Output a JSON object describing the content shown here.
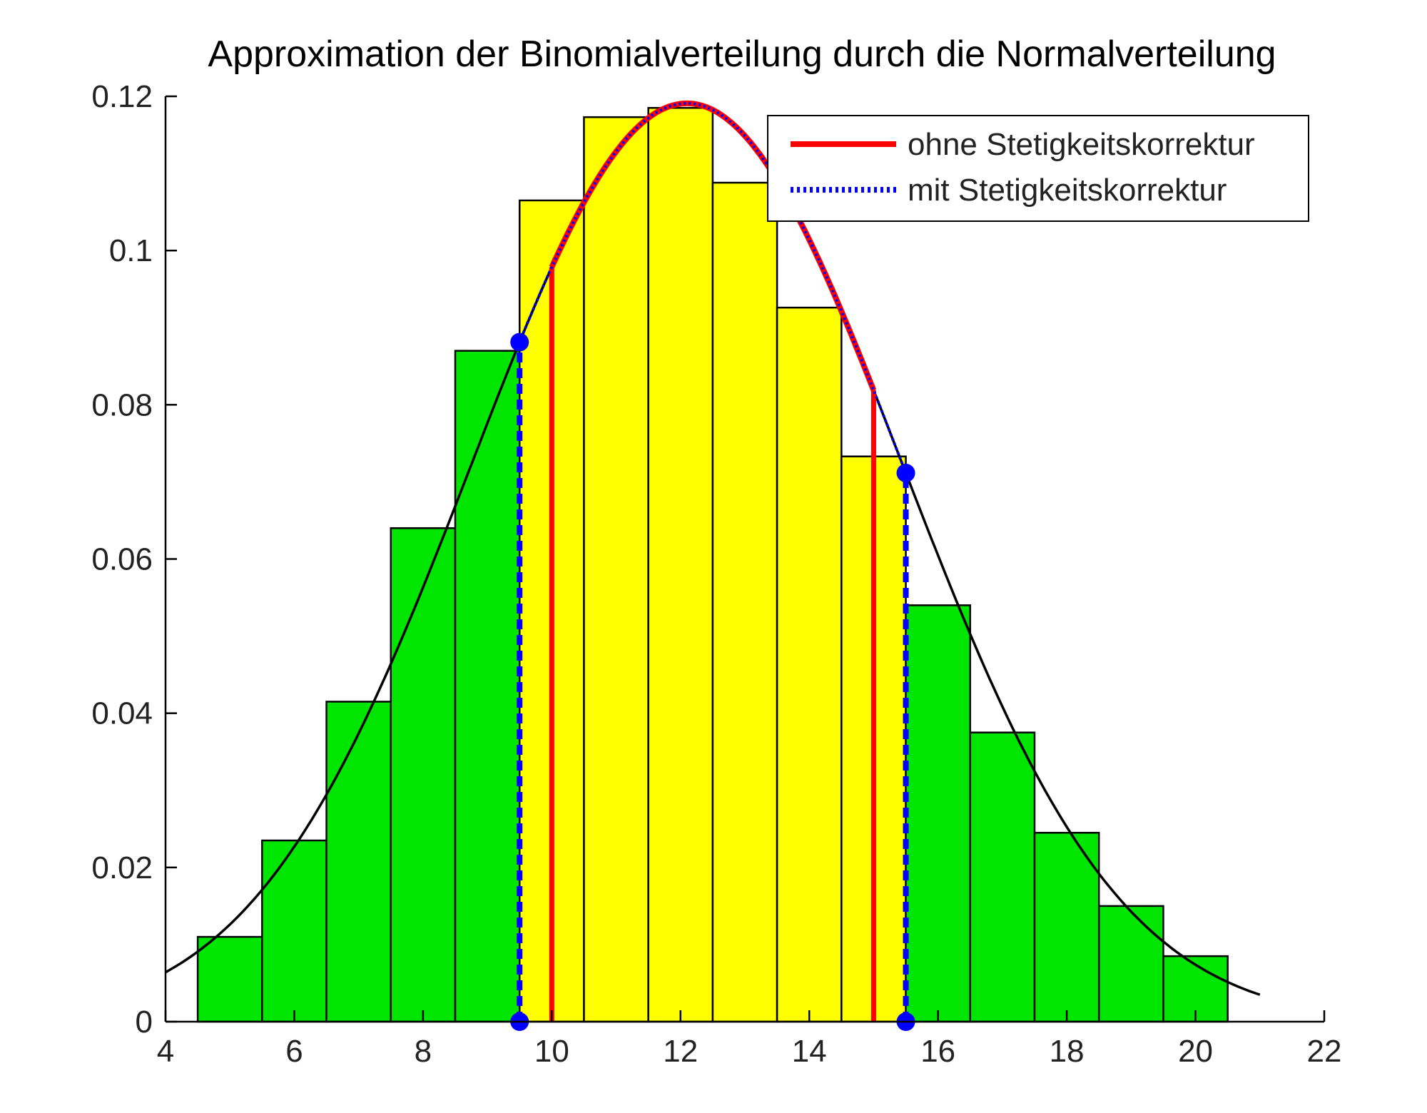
{
  "chart_data": {
    "type": "bar",
    "title": "Approximation der Binomialverteilung durch die Normalverteilung",
    "xlabel": "",
    "ylabel": "",
    "xlim": [
      4,
      22
    ],
    "ylim": [
      0,
      0.12
    ],
    "x_ticks": [
      "4",
      "6",
      "8",
      "10",
      "12",
      "14",
      "16",
      "18",
      "20",
      "22"
    ],
    "y_ticks": [
      "0",
      "0.02",
      "0.04",
      "0.06",
      "0.08",
      "0.1",
      "0.12"
    ],
    "grid": false,
    "legend_position": "top-right",
    "bars": {
      "x": [
        5,
        6,
        7,
        8,
        9,
        10,
        11,
        12,
        13,
        14,
        15,
        16,
        17,
        18,
        19,
        20
      ],
      "values": [
        0.011,
        0.0235,
        0.0415,
        0.064,
        0.087,
        0.1065,
        0.1173,
        0.1185,
        0.1088,
        0.0926,
        0.0733,
        0.054,
        0.0375,
        0.0245,
        0.015,
        0.0085
      ],
      "highlight_range": [
        10,
        15
      ],
      "highlight_color": "#ffff00",
      "base_color": "#00e600"
    },
    "normal_curve": {
      "mean": 12.1,
      "sd": 3.35,
      "x_range": [
        4,
        21
      ],
      "color": "#000000"
    },
    "series": [
      {
        "name": "ohne Stetigkeitskorrektur",
        "color": "#ff0000",
        "style": "solid",
        "interval": [
          10,
          15
        ]
      },
      {
        "name": "mit Stetigkeitskorrektur",
        "color": "#0000ff",
        "style": "dotted",
        "interval": [
          9.5,
          15.5
        ]
      }
    ]
  }
}
